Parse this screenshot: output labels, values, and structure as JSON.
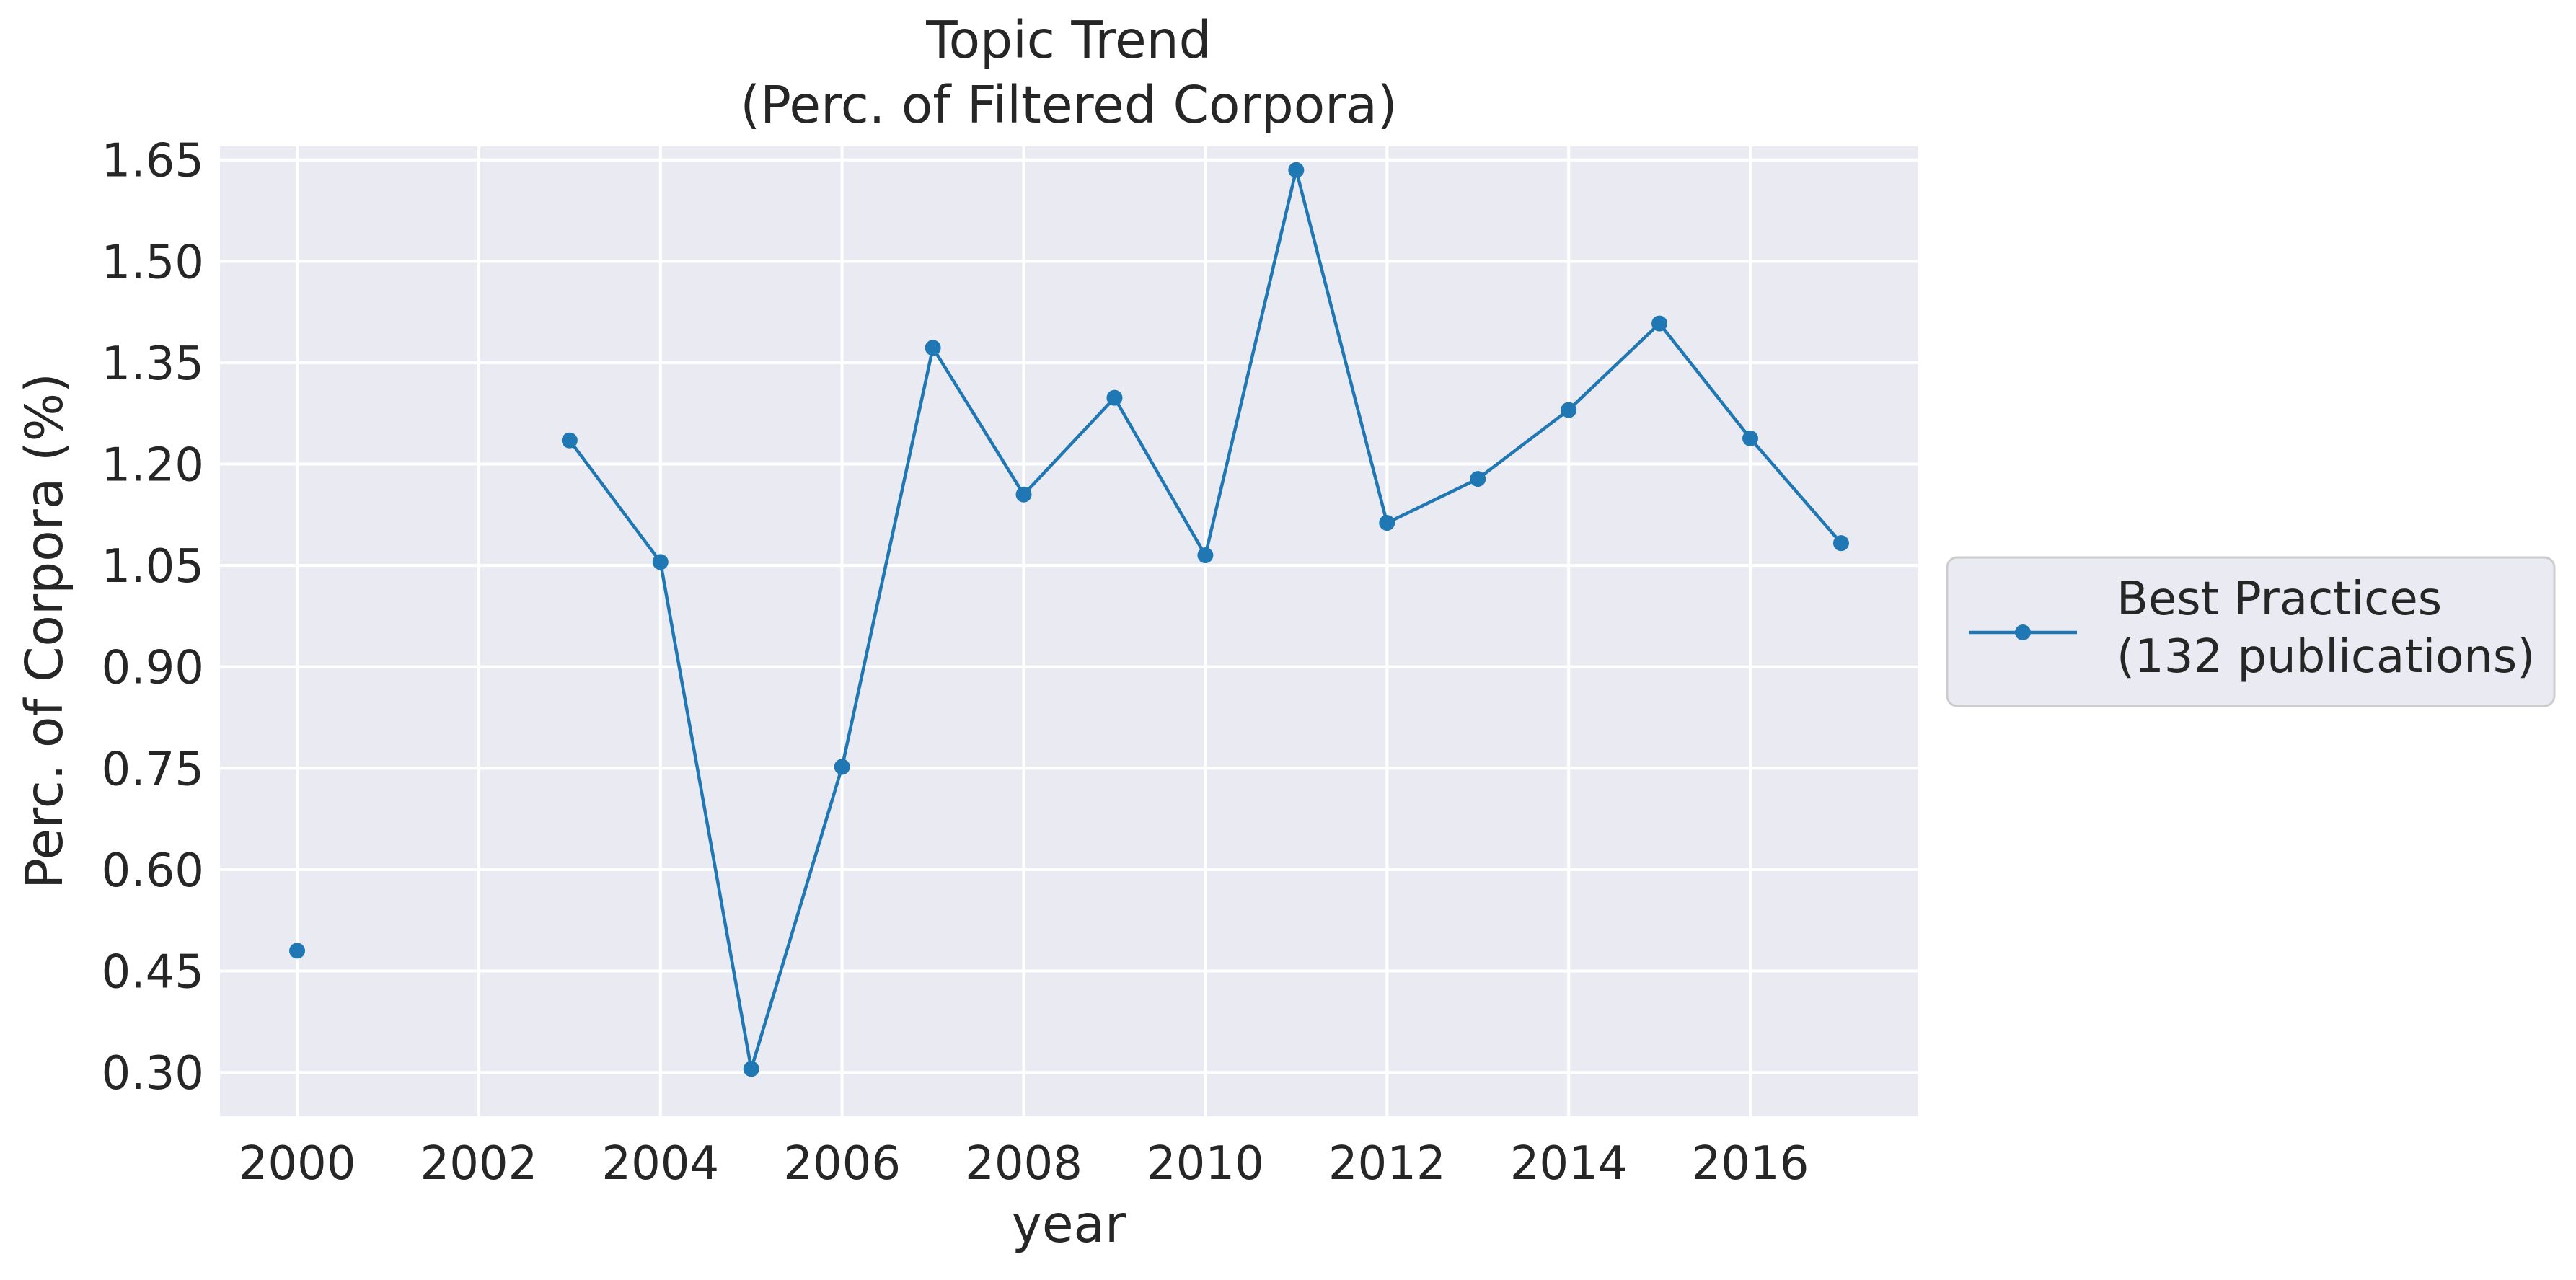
{
  "chart_data": {
    "type": "line",
    "title_lines": [
      "Topic Trend",
      "(Perc. of Filtered Corpora)"
    ],
    "xlabel": "year",
    "ylabel": "Perc. of Corpora (%)",
    "xlim": [
      1999.15,
      2017.85
    ],
    "ylim": [
      0.235,
      1.67
    ],
    "xticks": [
      2000,
      2002,
      2004,
      2006,
      2008,
      2010,
      2012,
      2014,
      2016
    ],
    "yticks": [
      0.3,
      0.45,
      0.6,
      0.75,
      0.9,
      1.05,
      1.2,
      1.35,
      1.5,
      1.65
    ],
    "ytick_labels": [
      "0.30",
      "0.45",
      "0.60",
      "0.75",
      "0.90",
      "1.05",
      "1.20",
      "1.35",
      "1.50",
      "1.65"
    ],
    "grid": true,
    "legend_placement": "outside-right",
    "series": [
      {
        "name_lines": [
          "Best Practices",
          "(132 publications)"
        ],
        "color": "#1f77b4",
        "marker": "circle",
        "points": [
          {
            "x": 2000,
            "y": 0.48
          },
          {
            "x": 2003,
            "y": 1.235
          },
          {
            "x": 2004,
            "y": 1.055
          },
          {
            "x": 2005,
            "y": 0.305
          },
          {
            "x": 2006,
            "y": 0.752
          },
          {
            "x": 2007,
            "y": 1.372
          },
          {
            "x": 2008,
            "y": 1.155
          },
          {
            "x": 2009,
            "y": 1.298
          },
          {
            "x": 2010,
            "y": 1.065
          },
          {
            "x": 2011,
            "y": 1.635
          },
          {
            "x": 2012,
            "y": 1.113
          },
          {
            "x": 2013,
            "y": 1.178
          },
          {
            "x": 2014,
            "y": 1.28
          },
          {
            "x": 2015,
            "y": 1.408
          },
          {
            "x": 2016,
            "y": 1.238
          },
          {
            "x": 2017,
            "y": 1.083
          }
        ],
        "segments": [
          [
            2000
          ],
          [
            2003,
            2004,
            2005,
            2006,
            2007,
            2008,
            2009,
            2010,
            2011,
            2012,
            2013,
            2014,
            2015,
            2016,
            2017
          ]
        ]
      }
    ],
    "colors": {
      "plot_background": "#eaeaf2",
      "grid": "#ffffff",
      "text": "#262626",
      "legend_border": "#cccccc"
    }
  }
}
